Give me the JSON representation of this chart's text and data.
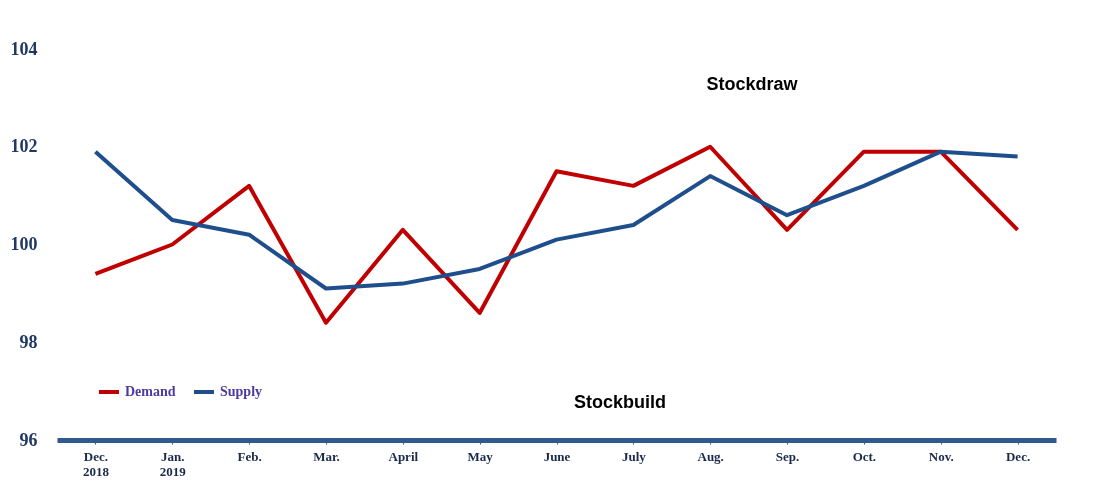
{
  "chart_data": {
    "type": "line",
    "categories": [
      "Dec. 2018",
      "Jan. 2019",
      "Feb.",
      "Mar.",
      "April",
      "May",
      "June",
      "July",
      "Aug.",
      "Sep.",
      "Oct.",
      "Nov.",
      "Dec."
    ],
    "series": [
      {
        "name": "Demand",
        "color": "#c00000",
        "values": [
          99.4,
          100.0,
          101.2,
          98.4,
          100.3,
          98.6,
          101.5,
          101.2,
          102.0,
          100.3,
          101.9,
          101.9,
          100.3
        ]
      },
      {
        "name": "Supply",
        "color": "#1f4e8c",
        "values": [
          101.9,
          100.5,
          100.2,
          99.1,
          99.2,
          99.5,
          100.1,
          100.4,
          101.4,
          100.6,
          101.2,
          101.9,
          101.8
        ]
      }
    ],
    "ylim": [
      96,
      104
    ],
    "yticks": [
      96,
      98,
      100,
      102,
      104
    ],
    "annotations": [
      "Stockdraw",
      "Stockbuild"
    ],
    "grid": false,
    "legend": "bottom left",
    "marker": "none",
    "line_style": "solid"
  }
}
